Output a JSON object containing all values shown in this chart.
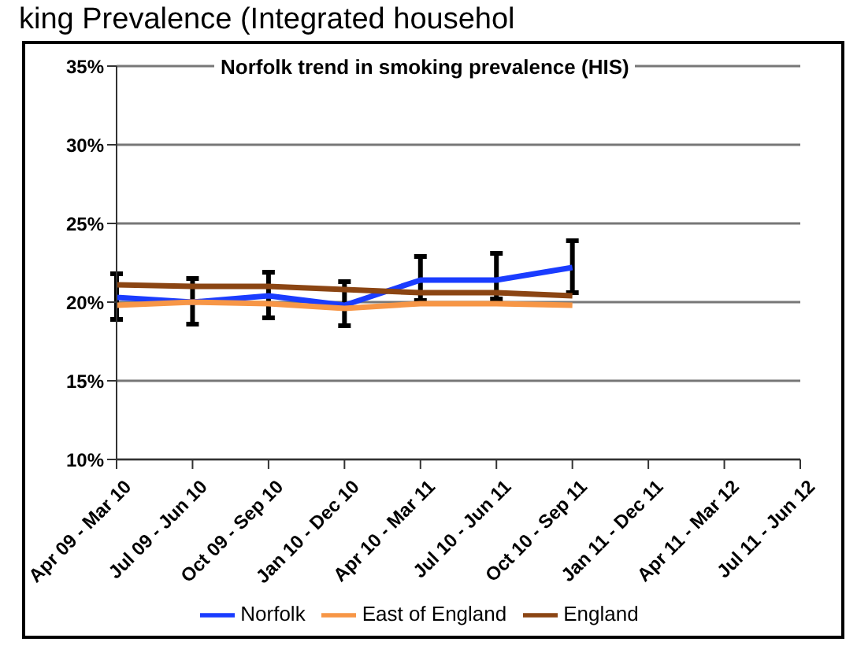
{
  "chart_data": {
    "type": "line",
    "title": "Norfolk trend in smoking prevalence (HIS)",
    "annotations": [
      "king Prevalence (Integrated househol"
    ],
    "categories": [
      "Apr 09 - Mar 10",
      "Jul 09 - Jun 10",
      "Oct 09 - Sep 10",
      "Jan 10 - Dec 10",
      "Apr 10 - Mar 11",
      "Jul 10 - Jun 11",
      "Oct 10 - Sep 11",
      "Jan 11 - Dec 11",
      "Apr 11 - Mar 12",
      "Jul 11 - Jun 12"
    ],
    "series": [
      {
        "name": "Norfolk",
        "color": "#1a3cff",
        "values": [
          20.3,
          20.0,
          20.4,
          19.8,
          21.4,
          21.4,
          22.2,
          null,
          null,
          null
        ],
        "errors": [
          [
            18.9,
            21.8
          ],
          [
            18.6,
            21.5
          ],
          [
            19.0,
            21.9
          ],
          [
            18.5,
            21.3
          ],
          [
            20.1,
            22.9
          ],
          [
            20.2,
            23.1
          ],
          [
            20.6,
            23.9
          ],
          null,
          null,
          null
        ]
      },
      {
        "name": "East of England",
        "color": "#f79646",
        "values": [
          19.8,
          20.0,
          19.9,
          19.6,
          19.9,
          19.9,
          19.8,
          null,
          null,
          null
        ]
      },
      {
        "name": "England",
        "color": "#8b4513",
        "values": [
          21.1,
          21.0,
          21.0,
          20.8,
          20.6,
          20.6,
          20.4,
          null,
          null,
          null
        ]
      }
    ],
    "ylim": [
      10,
      35
    ],
    "yticks": [
      {
        "value": 10,
        "label": "10%"
      },
      {
        "value": 15,
        "label": "15%"
      },
      {
        "value": 20,
        "label": "20%"
      },
      {
        "value": 25,
        "label": "25%"
      },
      {
        "value": 30,
        "label": "30%"
      },
      {
        "value": 35,
        "label": "35%"
      }
    ],
    "grid": "y",
    "legend": "bottom",
    "marker": "none",
    "line_style": "solid"
  }
}
